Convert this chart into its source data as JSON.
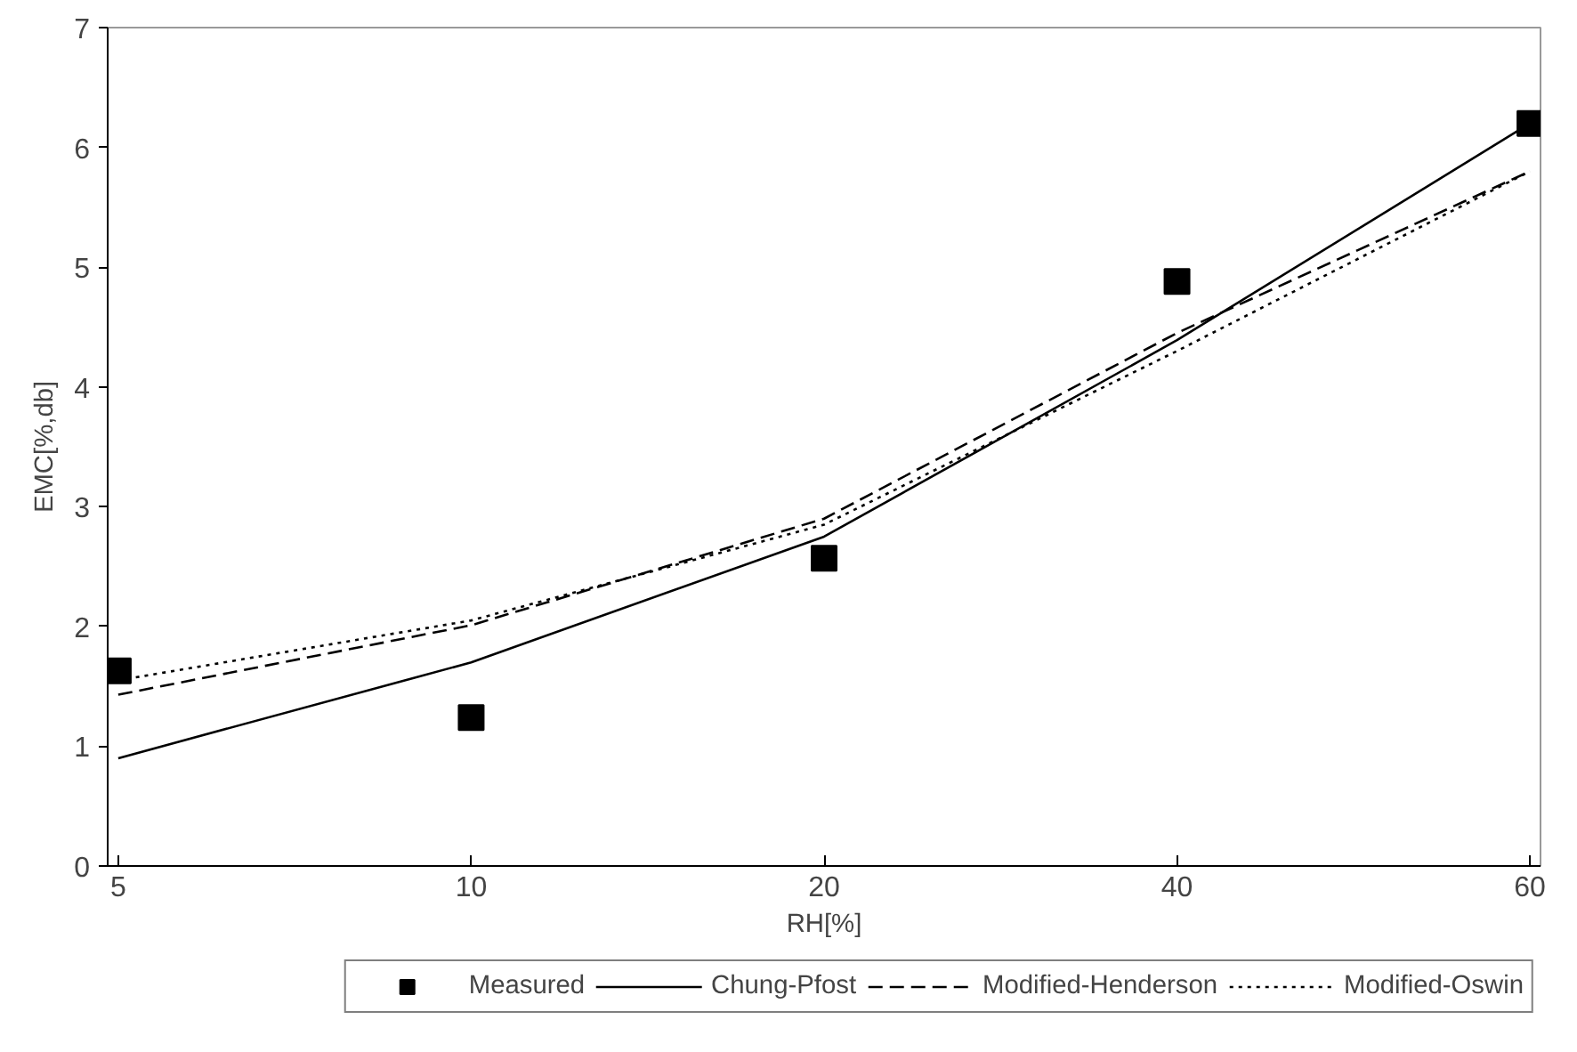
{
  "chart_data": {
    "type": "line",
    "xlabel": "RH[%]",
    "ylabel": "EMC[%,db]",
    "categories": [
      "5",
      "10",
      "20",
      "40",
      "60"
    ],
    "ylim": [
      0,
      7
    ],
    "yticks": [
      0,
      1,
      2,
      3,
      4,
      5,
      6,
      7
    ],
    "grid": false,
    "legend": "bottom",
    "series": [
      {
        "name": "Measured",
        "type": "scatter",
        "marker": "square",
        "color": "#000000",
        "values": [
          1.63,
          1.24,
          2.57,
          4.88,
          6.2
        ]
      },
      {
        "name": "Chung-Pfost",
        "line_style": "solid",
        "color": "#000000",
        "values": [
          0.9,
          1.7,
          2.75,
          4.39,
          6.2
        ]
      },
      {
        "name": "Modified-Henderson",
        "line_style": "dashed",
        "color": "#000000",
        "values": [
          1.43,
          2.01,
          2.9,
          4.45,
          5.8
        ]
      },
      {
        "name": "Modified-Oswin",
        "line_style": "dotted",
        "color": "#000000",
        "values": [
          1.55,
          2.05,
          2.85,
          4.3,
          5.8
        ]
      }
    ]
  }
}
